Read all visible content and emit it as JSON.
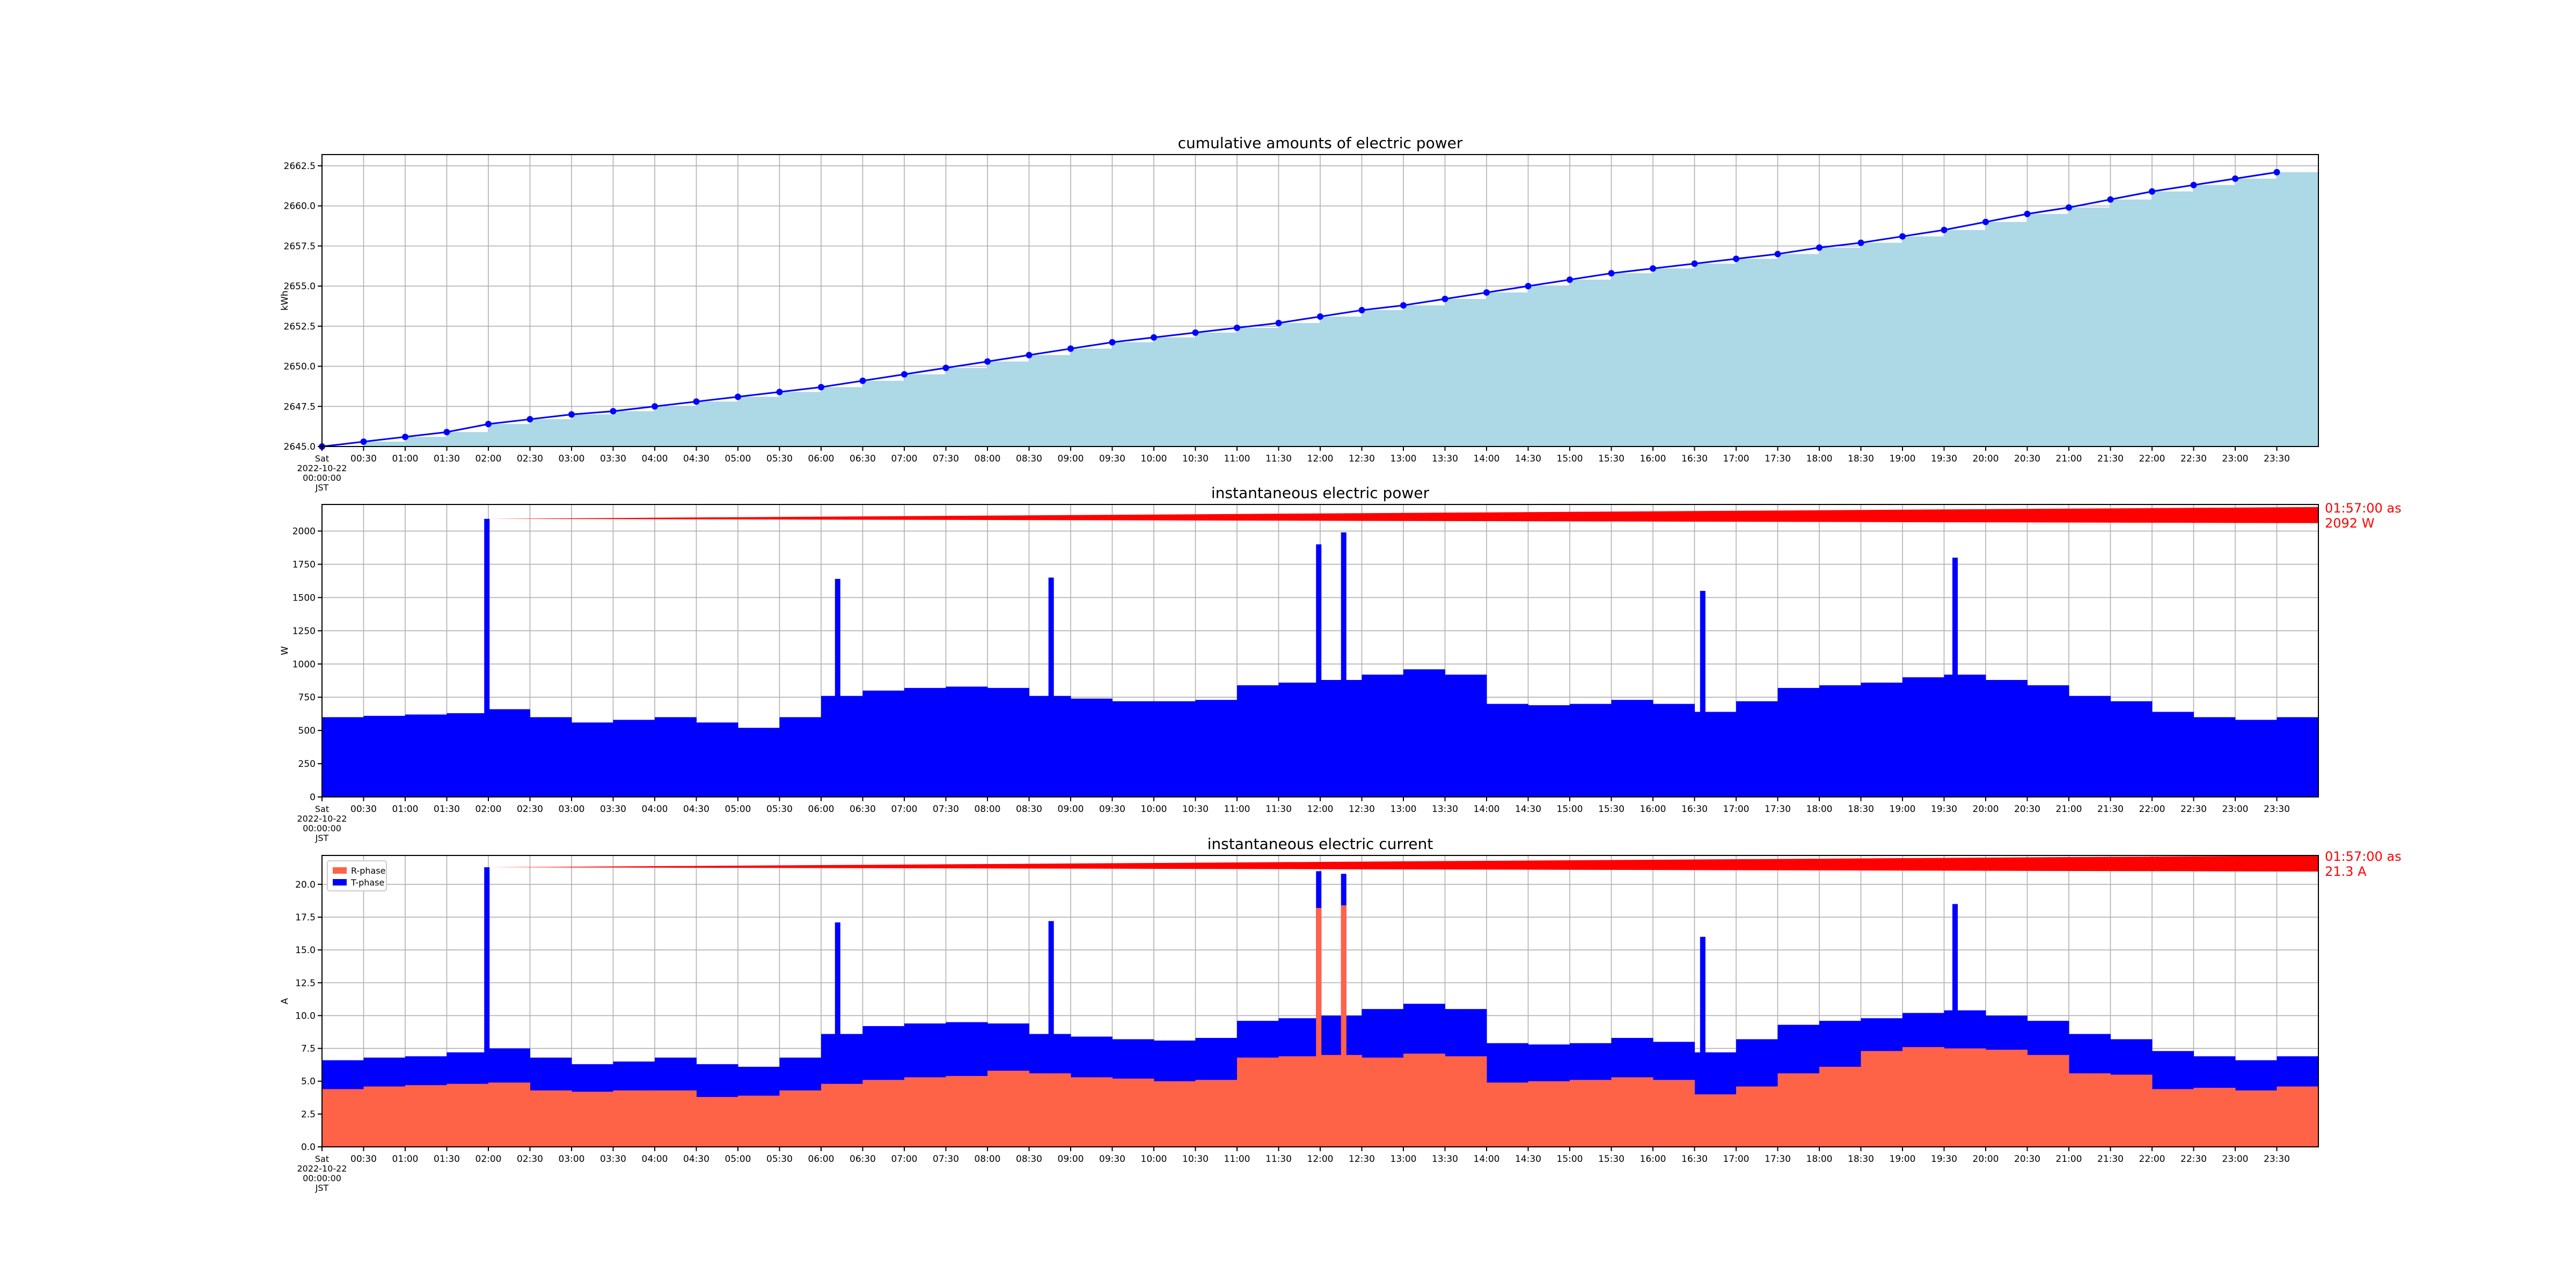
{
  "figure": {
    "x_ticks": [
      "00:30",
      "01:00",
      "01:30",
      "02:00",
      "02:30",
      "03:00",
      "03:30",
      "04:00",
      "04:30",
      "05:00",
      "05:30",
      "06:00",
      "06:30",
      "07:00",
      "07:30",
      "08:00",
      "08:30",
      "09:00",
      "09:30",
      "10:00",
      "10:30",
      "11:00",
      "11:30",
      "12:00",
      "12:30",
      "13:00",
      "13:30",
      "14:00",
      "14:30",
      "15:00",
      "15:30",
      "16:00",
      "16:30",
      "17:00",
      "17:30",
      "18:00",
      "18:30",
      "19:00",
      "19:30",
      "20:00",
      "20:30",
      "21:00",
      "21:30",
      "22:00",
      "22:30",
      "23:00",
      "23:30"
    ],
    "x_start_label": [
      "Sat",
      "2022-10-22",
      "00:00:00",
      "JST"
    ],
    "x_range_minutes": [
      0,
      1440
    ],
    "colors": {
      "line": "#0000ff",
      "area": "#add8e6",
      "bars": "#0000ff",
      "r_phase": "#ff6347",
      "t_phase": "#0000ff",
      "annotation": "#ff0000"
    }
  },
  "chart_data": [
    {
      "type": "area",
      "title": "cumulative amounts of electric power",
      "ylabel": "kWh",
      "ylim": [
        2645.0,
        2663.2
      ],
      "yticks": [
        "2645.0",
        "2647.5",
        "2650.0",
        "2652.5",
        "2655.0",
        "2657.5",
        "2660.0",
        "2662.5"
      ],
      "ytick_values": [
        2645.0,
        2647.5,
        2650.0,
        2652.5,
        2655.0,
        2657.5,
        2660.0,
        2662.5
      ],
      "grid": true,
      "series": [
        {
          "x_minutes": [
            0,
            30,
            60,
            90,
            120,
            150,
            180,
            210,
            240,
            270,
            300,
            330,
            360,
            390,
            420,
            450,
            480,
            510,
            540,
            570,
            600,
            630,
            660,
            690,
            720,
            750,
            780,
            810,
            840,
            870,
            900,
            930,
            960,
            990,
            1020,
            1050,
            1080,
            1110,
            1140,
            1170,
            1200,
            1230,
            1260,
            1290,
            1320,
            1350,
            1380,
            1410
          ],
          "values": [
            2645.0,
            2645.3,
            2645.6,
            2645.9,
            2646.4,
            2646.7,
            2647.0,
            2647.2,
            2647.5,
            2647.8,
            2648.1,
            2648.4,
            2648.7,
            2649.1,
            2649.5,
            2649.9,
            2650.3,
            2650.7,
            2651.1,
            2651.5,
            2651.8,
            2652.1,
            2652.4,
            2652.7,
            2653.1,
            2653.5,
            2653.8,
            2654.2,
            2654.6,
            2655.0,
            2655.4,
            2655.8,
            2656.1,
            2656.4,
            2656.7,
            2657.0,
            2657.4,
            2657.7,
            2658.1,
            2658.5,
            2659.0,
            2659.5,
            2659.9,
            2660.4,
            2660.9,
            2661.3,
            2661.7,
            2662.1
          ]
        }
      ]
    },
    {
      "type": "bar",
      "title": "instantaneous electric power",
      "ylabel": "W",
      "ylim": [
        0,
        2200
      ],
      "yticks": [
        "0",
        "250",
        "500",
        "750",
        "1000",
        "1250",
        "1500",
        "1750",
        "2000"
      ],
      "ytick_values": [
        0,
        250,
        500,
        750,
        1000,
        1250,
        1500,
        1750,
        2000
      ],
      "grid": true,
      "series": [
        {
          "interval_minutes": 30,
          "x_minutes": [
            0,
            30,
            60,
            90,
            120,
            150,
            180,
            210,
            240,
            270,
            300,
            330,
            360,
            390,
            420,
            450,
            480,
            510,
            540,
            570,
            600,
            630,
            660,
            690,
            720,
            750,
            780,
            810,
            840,
            870,
            900,
            930,
            960,
            990,
            1020,
            1050,
            1080,
            1110,
            1140,
            1170,
            1200,
            1230,
            1260,
            1290,
            1320,
            1350,
            1380,
            1410
          ],
          "values": [
            600,
            610,
            620,
            630,
            660,
            600,
            560,
            580,
            600,
            560,
            520,
            600,
            760,
            800,
            820,
            830,
            820,
            760,
            740,
            720,
            720,
            730,
            840,
            860,
            880,
            920,
            960,
            920,
            700,
            690,
            700,
            730,
            700,
            640,
            720,
            820,
            840,
            860,
            900,
            920,
            880,
            840,
            760,
            720,
            640,
            600,
            580,
            600
          ],
          "spikes": [
            {
              "x_minutes": 117,
              "value": 2092
            },
            {
              "x_minutes": 370,
              "value": 1640
            },
            {
              "x_minutes": 524,
              "value": 1650
            },
            {
              "x_minutes": 717,
              "value": 1900
            },
            {
              "x_minutes": 735,
              "value": 1990
            },
            {
              "x_minutes": 994,
              "value": 1550
            },
            {
              "x_minutes": 1176,
              "value": 1800
            }
          ]
        }
      ],
      "annotation": [
        "01:57:00 as",
        "2092 W"
      ],
      "annotation_point": {
        "x_minutes": 117,
        "value": 2092
      }
    },
    {
      "type": "bar",
      "title": "instantaneous electric current",
      "ylabel": "A",
      "ylim": [
        0,
        22.2
      ],
      "yticks": [
        "0.0",
        "2.5",
        "5.0",
        "7.5",
        "10.0",
        "12.5",
        "15.0",
        "17.5",
        "20.0"
      ],
      "ytick_values": [
        0,
        2.5,
        5,
        7.5,
        10,
        12.5,
        15,
        17.5,
        20
      ],
      "grid": true,
      "legend": "upper-left",
      "series": [
        {
          "name": "R-phase",
          "interval_minutes": 30,
          "x_minutes": [
            0,
            30,
            60,
            90,
            120,
            150,
            180,
            210,
            240,
            270,
            300,
            330,
            360,
            390,
            420,
            450,
            480,
            510,
            540,
            570,
            600,
            630,
            660,
            690,
            720,
            750,
            780,
            810,
            840,
            870,
            900,
            930,
            960,
            990,
            1020,
            1050,
            1080,
            1110,
            1140,
            1170,
            1200,
            1230,
            1260,
            1290,
            1320,
            1350,
            1380,
            1410
          ],
          "values": [
            4.4,
            4.6,
            4.7,
            4.8,
            4.9,
            4.3,
            4.2,
            4.3,
            4.3,
            3.8,
            3.9,
            4.3,
            4.8,
            5.1,
            5.3,
            5.4,
            5.8,
            5.6,
            5.3,
            5.2,
            5.0,
            5.1,
            6.8,
            6.9,
            7.0,
            6.8,
            7.1,
            6.9,
            4.9,
            5.0,
            5.1,
            5.3,
            5.1,
            4.0,
            4.6,
            5.6,
            6.1,
            7.3,
            7.6,
            7.5,
            7.4,
            7.0,
            5.6,
            5.5,
            4.4,
            4.5,
            4.3,
            4.6
          ],
          "spikes": [
            {
              "x_minutes": 717,
              "value": 18.2
            },
            {
              "x_minutes": 735,
              "value": 18.4
            }
          ]
        },
        {
          "name": "T-phase",
          "interval_minutes": 30,
          "x_minutes": [
            0,
            30,
            60,
            90,
            120,
            150,
            180,
            210,
            240,
            270,
            300,
            330,
            360,
            390,
            420,
            450,
            480,
            510,
            540,
            570,
            600,
            630,
            660,
            690,
            720,
            750,
            780,
            810,
            840,
            870,
            900,
            930,
            960,
            990,
            1020,
            1050,
            1080,
            1110,
            1140,
            1170,
            1200,
            1230,
            1260,
            1290,
            1320,
            1350,
            1380,
            1410
          ],
          "values": [
            6.6,
            6.8,
            6.9,
            7.2,
            7.5,
            6.8,
            6.3,
            6.5,
            6.8,
            6.3,
            6.1,
            6.8,
            8.6,
            9.2,
            9.4,
            9.5,
            9.4,
            8.6,
            8.4,
            8.2,
            8.1,
            8.3,
            9.6,
            9.8,
            10.0,
            10.5,
            10.9,
            10.5,
            7.9,
            7.8,
            7.9,
            8.3,
            8.0,
            7.2,
            8.2,
            9.3,
            9.6,
            9.8,
            10.2,
            10.4,
            10.0,
            9.6,
            8.6,
            8.2,
            7.3,
            6.9,
            6.6,
            6.9
          ],
          "spikes": [
            {
              "x_minutes": 117,
              "value": 21.3
            },
            {
              "x_minutes": 370,
              "value": 17.1
            },
            {
              "x_minutes": 524,
              "value": 17.2
            },
            {
              "x_minutes": 717,
              "value": 21.0
            },
            {
              "x_minutes": 735,
              "value": 20.8
            },
            {
              "x_minutes": 994,
              "value": 16.0
            },
            {
              "x_minutes": 1176,
              "value": 18.5
            }
          ]
        }
      ],
      "annotation": [
        "01:57:00 as",
        "21.3 A"
      ],
      "annotation_point": {
        "x_minutes": 117,
        "value": 21.3
      }
    }
  ]
}
